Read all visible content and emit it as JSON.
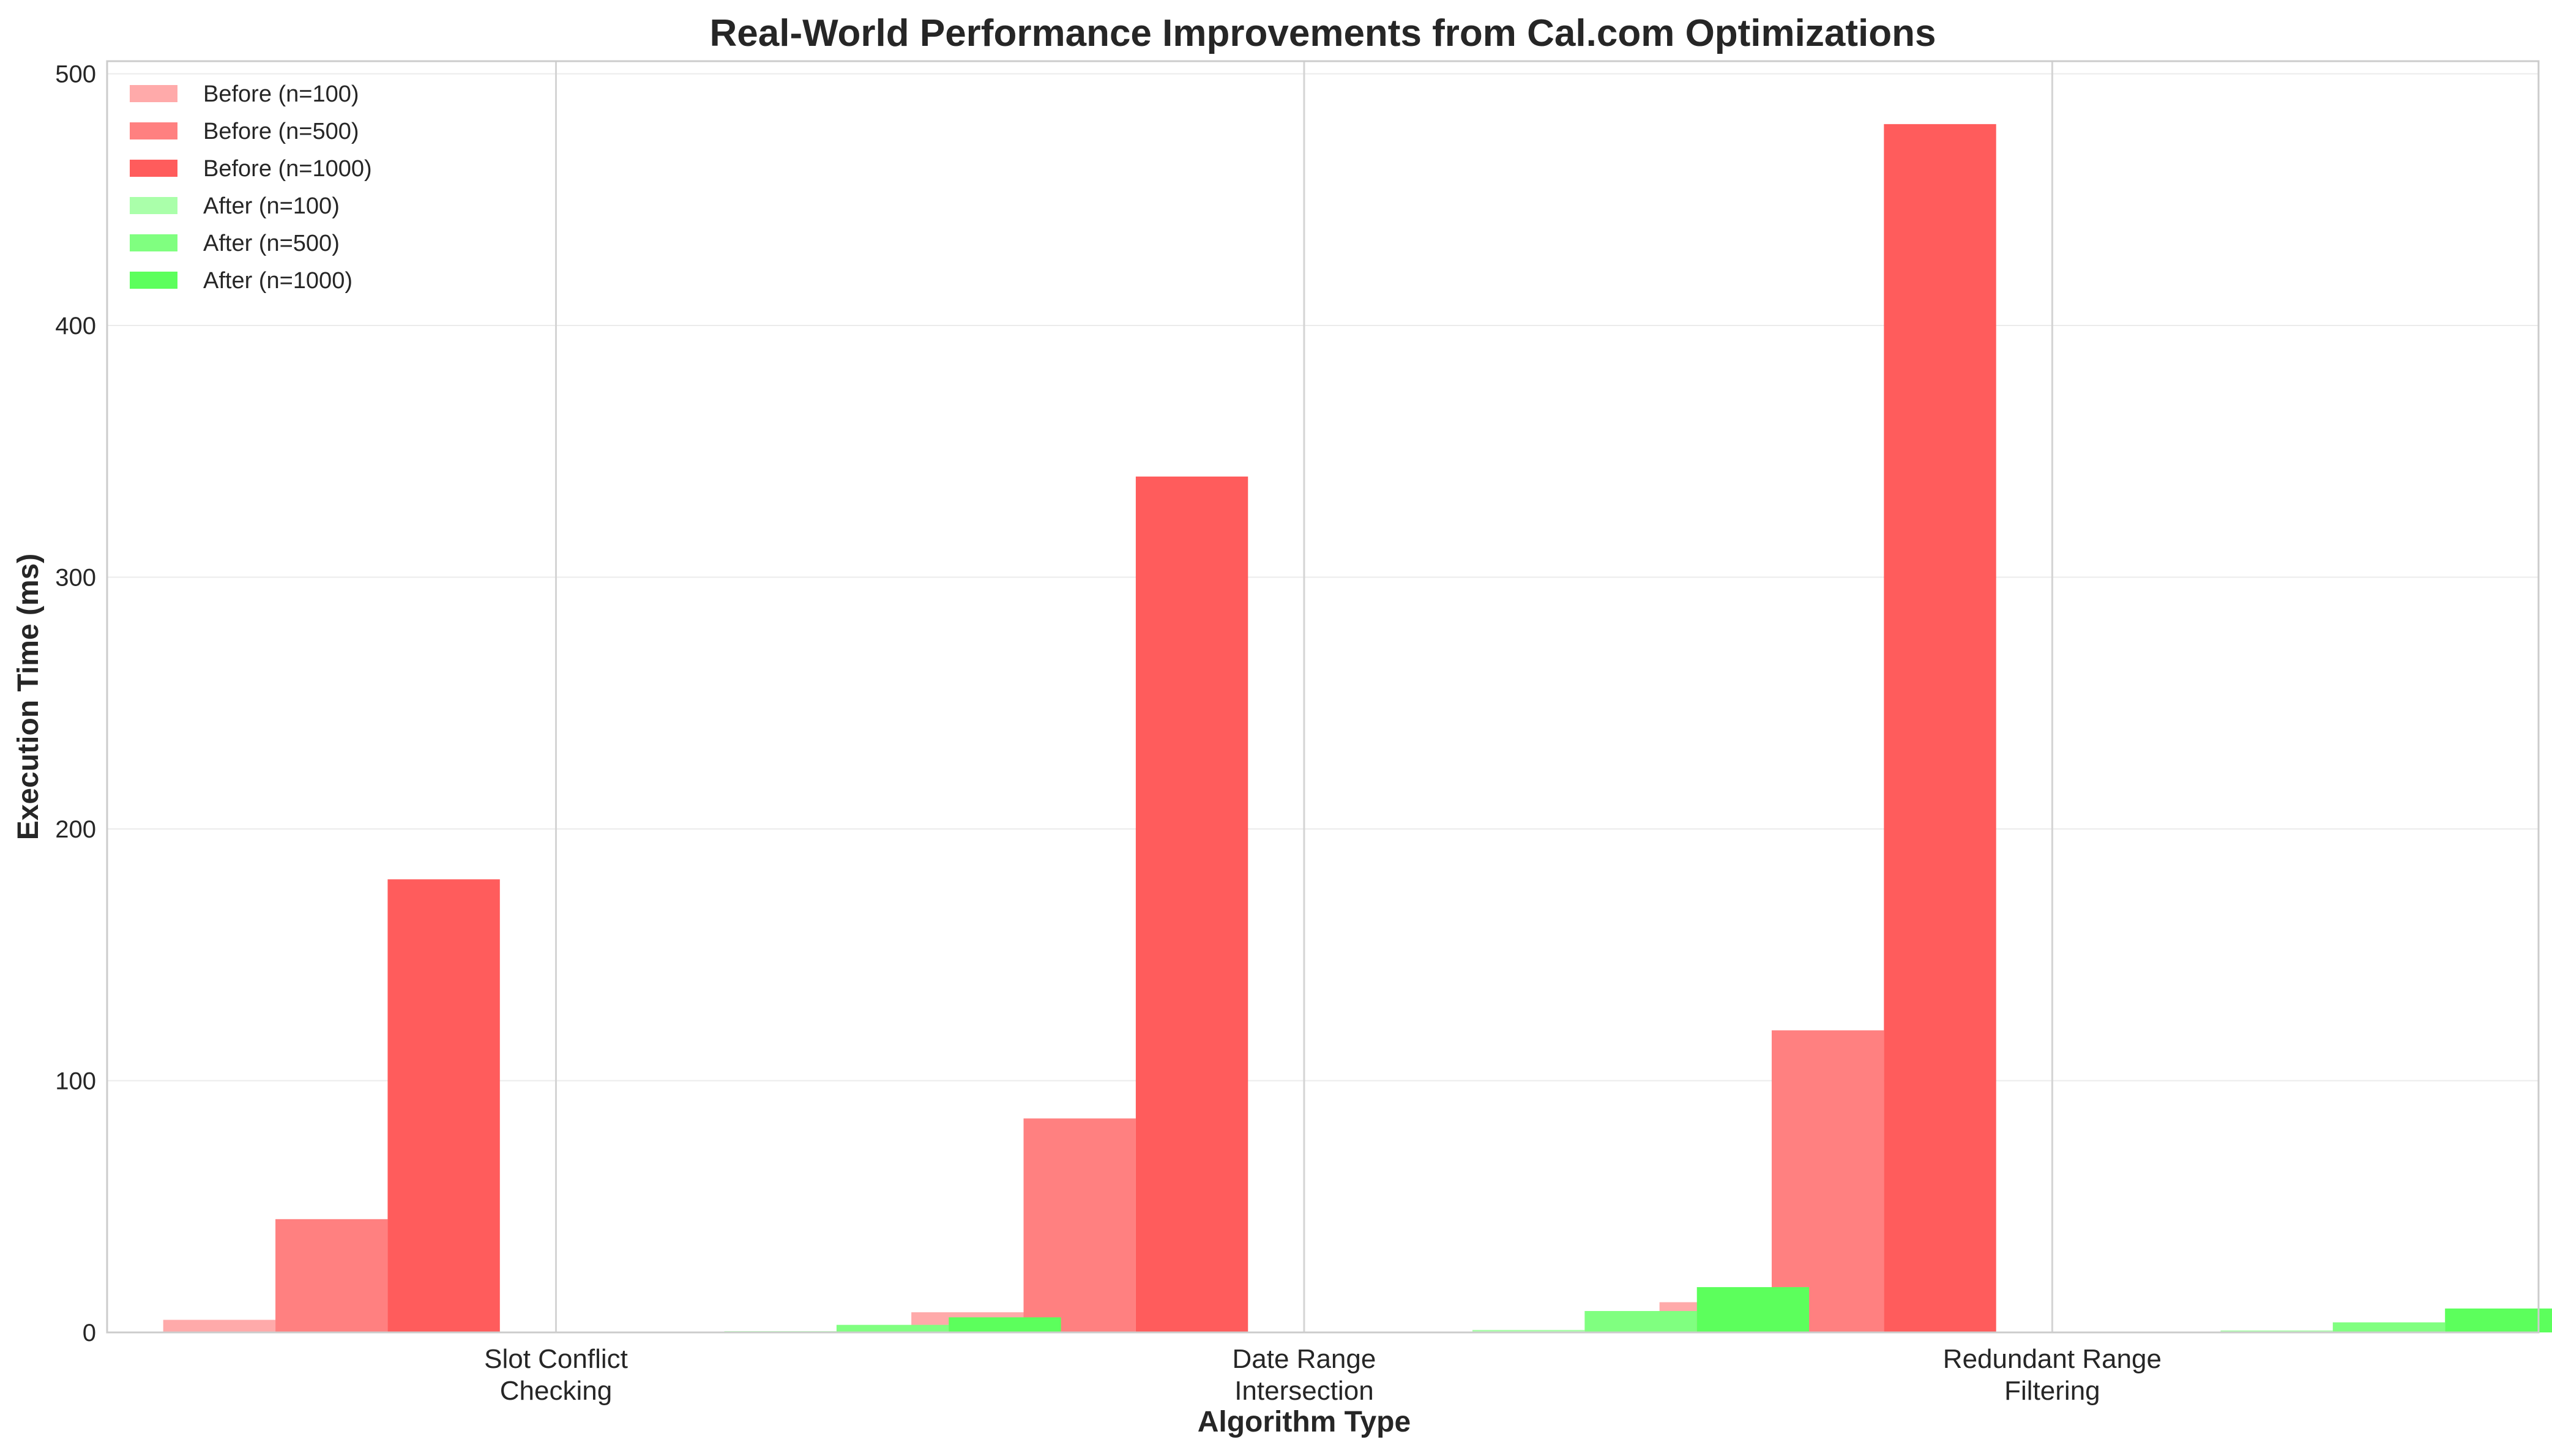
{
  "chart_data": {
    "type": "bar",
    "title": "Real-World Performance Improvements from Cal.com Optimizations",
    "xlabel": "Algorithm Type",
    "ylabel": "Execution Time (ms)",
    "ylim": [
      0,
      505
    ],
    "yticks": [
      0,
      100,
      200,
      300,
      400,
      500
    ],
    "grid": true,
    "legend_position": "top-left",
    "categories": [
      [
        "Slot Conflict",
        "Checking"
      ],
      [
        "Date Range",
        "Intersection"
      ],
      [
        "Redundant Range",
        "Filtering"
      ]
    ],
    "series": [
      {
        "name": "Before (n=100)",
        "color": "#ffaaaa",
        "values": [
          5,
          8,
          12
        ]
      },
      {
        "name": "Before (n=500)",
        "color": "#ff8080",
        "values": [
          45,
          85,
          120
        ]
      },
      {
        "name": "Before (n=1000)",
        "color": "#ff5c5c",
        "values": [
          180,
          340,
          480
        ]
      },
      {
        "name": "After (n=100)",
        "color": "#aaffaa",
        "values": [
          0.5,
          1,
          0.8
        ]
      },
      {
        "name": "After (n=500)",
        "color": "#80ff80",
        "values": [
          3,
          8.5,
          4
        ]
      },
      {
        "name": "After (n=1000)",
        "color": "#5cff5c",
        "values": [
          6,
          18,
          9.5
        ]
      }
    ]
  }
}
